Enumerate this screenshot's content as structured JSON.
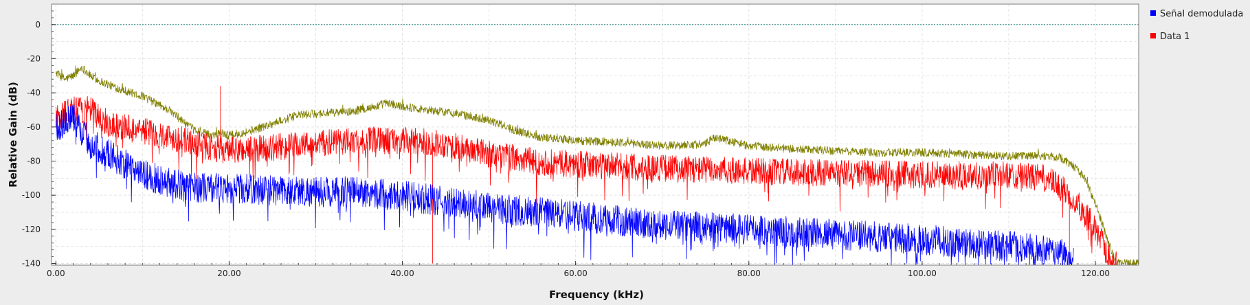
{
  "chart_data": {
    "type": "line",
    "title": "",
    "xlabel": "Frequency (kHz)",
    "ylabel": "Relative Gain (dB)",
    "xlim": [
      -0.5,
      125
    ],
    "ylim": [
      -141,
      12
    ],
    "x_ticks": [
      0,
      20,
      40,
      60,
      80,
      100,
      120
    ],
    "x_tick_labels": [
      "0.00",
      "20.00",
      "40.00",
      "60.00",
      "80.00",
      "100.00",
      "120.00"
    ],
    "y_ticks": [
      0,
      -20,
      -40,
      -60,
      -80,
      -100,
      -120,
      -140
    ],
    "y_tick_labels": [
      "0",
      "-20",
      "-40",
      "-60",
      "-80",
      "-100",
      "-120",
      "-140"
    ],
    "grid": true,
    "legend_position": "right",
    "reference_line": {
      "y": 0,
      "color": "#2e8b8b"
    },
    "series": [
      {
        "name": "",
        "color": "#808000",
        "x": [
          0,
          1,
          2,
          3,
          4,
          5,
          7,
          10,
          13,
          16,
          18,
          19,
          20,
          22,
          25,
          28,
          31,
          34,
          37,
          38,
          40,
          43,
          46,
          50,
          53,
          56,
          60,
          65,
          70,
          75,
          76,
          80,
          85,
          90,
          95,
          100,
          105,
          110,
          114,
          116,
          118,
          119,
          120,
          121,
          122,
          122.5,
          125
        ],
        "y": [
          -28,
          -32,
          -30,
          -25,
          -30,
          -33,
          -37,
          -42,
          -50,
          -62,
          -65,
          -63,
          -65,
          -63,
          -58,
          -53,
          -52,
          -51,
          -48,
          -46,
          -48,
          -50,
          -52,
          -56,
          -62,
          -66,
          -68,
          -69,
          -71,
          -70,
          -66,
          -71,
          -73,
          -74,
          -75,
          -75,
          -76,
          -77,
          -77,
          -78,
          -85,
          -92,
          -105,
          -120,
          -135,
          -140,
          -140
        ],
        "noise": 2.5
      },
      {
        "name": "Data 1",
        "color": "#ff0000",
        "x": [
          0,
          2,
          4,
          6,
          10,
          15,
          18,
          20,
          25,
          30,
          35,
          40,
          45,
          50,
          55,
          60,
          70,
          80,
          90,
          100,
          110,
          114,
          116,
          118,
          120,
          121,
          122,
          122.5
        ],
        "y": [
          -55,
          -50,
          -50,
          -58,
          -62,
          -68,
          -72,
          -74,
          -72,
          -70,
          -68,
          -68,
          -70,
          -76,
          -80,
          -82,
          -84,
          -86,
          -87,
          -88,
          -88,
          -90,
          -95,
          -105,
          -120,
          -130,
          -140,
          -140
        ],
        "noise": 8,
        "spikes": [
          {
            "x": 19,
            "y": -36
          },
          {
            "x": 43.5,
            "y": -140
          },
          {
            "x": 117,
            "y": -138
          }
        ]
      },
      {
        "name": "Señal demodulada",
        "color": "#0000ff",
        "x": [
          0,
          2,
          4,
          6,
          8,
          10,
          15,
          20,
          25,
          30,
          35,
          40,
          45,
          50,
          55,
          60,
          65,
          70,
          80,
          90,
          100,
          110,
          116,
          117.5
        ],
        "y": [
          -60,
          -55,
          -70,
          -75,
          -82,
          -88,
          -95,
          -96,
          -97,
          -98,
          -98,
          -100,
          -104,
          -107,
          -110,
          -112,
          -115,
          -117,
          -120,
          -123,
          -126,
          -130,
          -133,
          -138
        ],
        "noise": 9
      }
    ],
    "legend": [
      "Señal demodulada",
      "Data 1"
    ]
  }
}
